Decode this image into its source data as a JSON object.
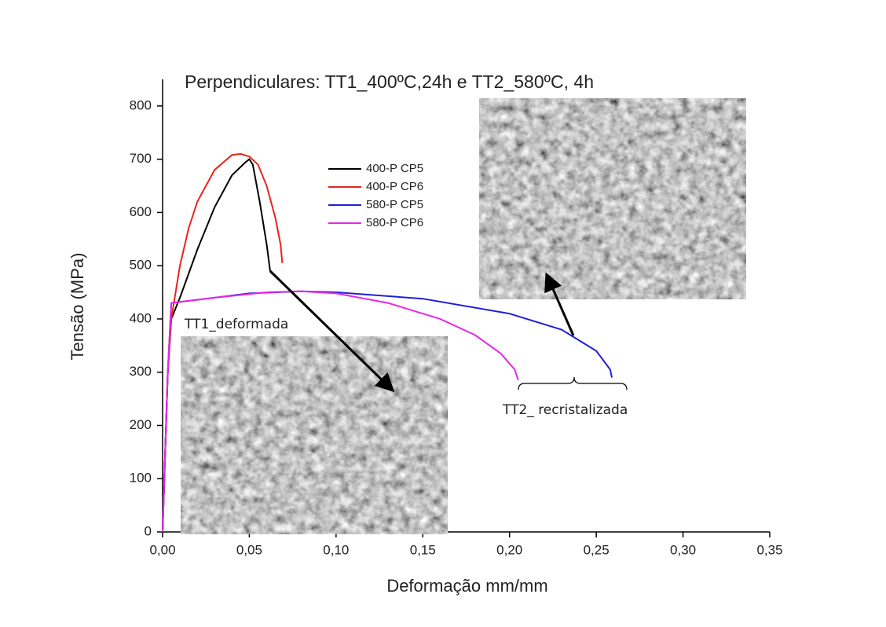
{
  "chart_data": {
    "type": "line",
    "title": "Perpendiculares: TT1_400ºC,24h e TT2_580ºC, 4h",
    "x_label": "Deformação mm/mm",
    "y_label": "Tensão (MPa)",
    "xlim": [
      0,
      0.35
    ],
    "ylim": [
      0,
      850
    ],
    "xticks": [
      {
        "value": 0,
        "label": "0,00"
      },
      {
        "value": 0.05,
        "label": "0,05"
      },
      {
        "value": 0.1,
        "label": "0,10"
      },
      {
        "value": 0.15,
        "label": "0,15"
      },
      {
        "value": 0.2,
        "label": "0,20"
      },
      {
        "value": 0.25,
        "label": "0,25"
      },
      {
        "value": 0.3,
        "label": "0,30"
      },
      {
        "value": 0.35,
        "label": "0,35"
      }
    ],
    "yticks": [
      0,
      100,
      200,
      300,
      400,
      500,
      600,
      700,
      800
    ],
    "legend_position": "upper center",
    "series": [
      {
        "name": "400-P CP5",
        "color": "#000000",
        "x": [
          0,
          0.003,
          0.005,
          0.01,
          0.02,
          0.03,
          0.04,
          0.048,
          0.05,
          0.052,
          0.056,
          0.06,
          0.062,
          0.063
        ],
        "values": [
          0,
          300,
          400,
          440,
          530,
          610,
          670,
          695,
          700,
          690,
          620,
          540,
          490,
          485
        ]
      },
      {
        "name": "400-P CP6",
        "color": "#e8231e",
        "x": [
          0,
          0.003,
          0.005,
          0.01,
          0.015,
          0.02,
          0.03,
          0.04,
          0.045,
          0.05,
          0.055,
          0.06,
          0.065,
          0.068,
          0.069
        ],
        "values": [
          0,
          300,
          400,
          500,
          570,
          620,
          680,
          708,
          710,
          705,
          690,
          650,
          590,
          540,
          505
        ]
      },
      {
        "name": "580-P CP5",
        "color": "#1f1fd6",
        "x": [
          0,
          0.003,
          0.005,
          0.01,
          0.02,
          0.05,
          0.08,
          0.1,
          0.15,
          0.2,
          0.23,
          0.25,
          0.258,
          0.259
        ],
        "values": [
          0,
          300,
          430,
          432,
          436,
          448,
          452,
          450,
          438,
          410,
          380,
          340,
          305,
          290
        ]
      },
      {
        "name": "580-P CP6",
        "color": "#e627e6",
        "x": [
          0,
          0.003,
          0.005,
          0.01,
          0.03,
          0.06,
          0.08,
          0.1,
          0.13,
          0.16,
          0.18,
          0.195,
          0.203,
          0.205
        ],
        "values": [
          0,
          300,
          430,
          432,
          440,
          450,
          452,
          448,
          430,
          400,
          370,
          335,
          305,
          285
        ]
      }
    ],
    "annotations": [
      "TT1_deformada",
      "TT2_ recristalizada"
    ]
  }
}
